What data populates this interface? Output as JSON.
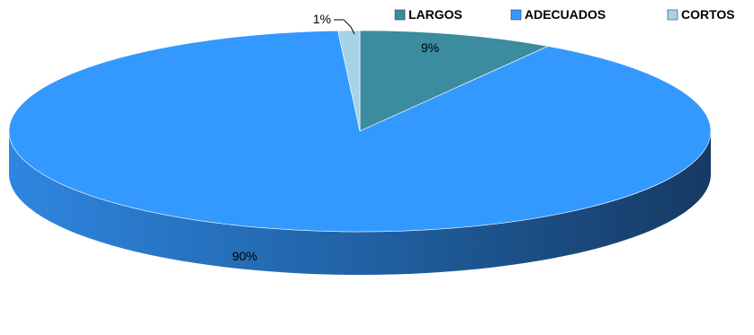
{
  "chart_data": {
    "type": "pie",
    "style": "3d",
    "categories": [
      "LARGOS",
      "ADECUADOS",
      "CORTOS"
    ],
    "values": [
      9,
      90,
      1
    ],
    "labels": [
      "9%",
      "90%",
      "1%"
    ],
    "colors": [
      "#3A8C9E",
      "#3399FF",
      "#A6D4E6"
    ],
    "side_colors": [
      "#2A6E80",
      "#1E5FA8",
      "#7AAFC2"
    ],
    "legend_position": "top-right"
  }
}
